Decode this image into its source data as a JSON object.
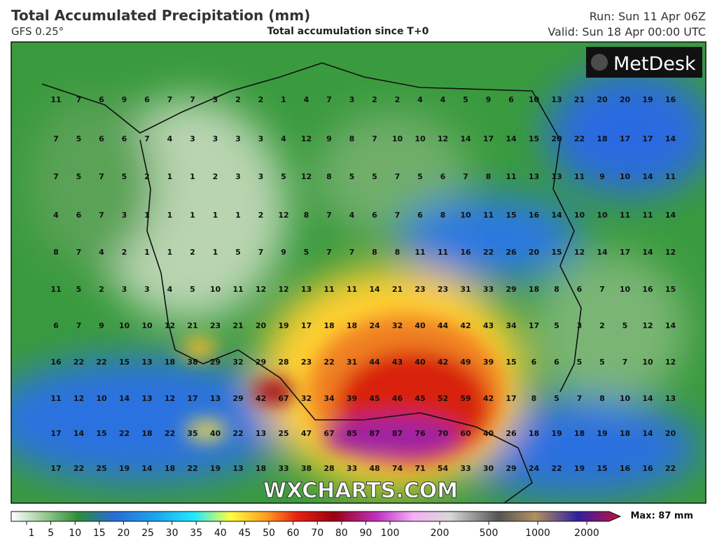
{
  "header": {
    "title": "Total Accumulated Precipitation (mm)",
    "model": "GFS 0.25°",
    "subtitle": "Total accumulation since T+0",
    "run": "Run: Sun 11 Apr 06Z",
    "valid": "Valid: Sun 18 Apr 00:00 UTC"
  },
  "logo": "MetDesk",
  "watermark": "WXCHARTS.COM",
  "grid": {
    "rows": [
      [
        11,
        7,
        6,
        9,
        6,
        7,
        7,
        3,
        2,
        2,
        1,
        4,
        7,
        3,
        2,
        2,
        4,
        4,
        5,
        9,
        6,
        10,
        13,
        21,
        20,
        20,
        19,
        16
      ],
      [
        7,
        5,
        6,
        6,
        7,
        4,
        3,
        3,
        3,
        3,
        4,
        12,
        9,
        8,
        7,
        10,
        10,
        12,
        14,
        17,
        14,
        15,
        20,
        22,
        18,
        17,
        17,
        14
      ],
      [
        7,
        5,
        7,
        5,
        2,
        1,
        1,
        2,
        3,
        3,
        5,
        12,
        8,
        5,
        5,
        7,
        5,
        6,
        7,
        8,
        11,
        13,
        13,
        11,
        9,
        10,
        14,
        11
      ],
      [
        4,
        6,
        7,
        3,
        1,
        1,
        1,
        1,
        1,
        2,
        12,
        8,
        7,
        4,
        6,
        7,
        6,
        8,
        10,
        11,
        15,
        16,
        14,
        10,
        10,
        11,
        11,
        14
      ],
      [
        8,
        7,
        4,
        2,
        1,
        1,
        2,
        1,
        5,
        7,
        9,
        5,
        7,
        7,
        8,
        8,
        11,
        11,
        16,
        22,
        26,
        20,
        15,
        12,
        14,
        17,
        14,
        12
      ],
      [
        11,
        5,
        2,
        3,
        3,
        4,
        5,
        10,
        11,
        12,
        12,
        13,
        11,
        11,
        14,
        21,
        23,
        23,
        31,
        33,
        29,
        18,
        8,
        6,
        7,
        10,
        16,
        15
      ],
      [
        6,
        7,
        9,
        10,
        10,
        12,
        21,
        23,
        21,
        20,
        19,
        17,
        18,
        18,
        24,
        32,
        40,
        44,
        42,
        43,
        34,
        17,
        5,
        3,
        2,
        5,
        12,
        14
      ],
      [
        16,
        22,
        22,
        15,
        13,
        18,
        38,
        29,
        32,
        29,
        28,
        23,
        22,
        31,
        44,
        43,
        40,
        42,
        49,
        39,
        15,
        6,
        6,
        5,
        5,
        7,
        10,
        12
      ],
      [
        11,
        12,
        10,
        14,
        13,
        12,
        17,
        13,
        29,
        42,
        67,
        32,
        34,
        39,
        45,
        46,
        45,
        52,
        59,
        42,
        17,
        8,
        5,
        7,
        8,
        10,
        14,
        13
      ],
      [
        17,
        14,
        15,
        22,
        18,
        22,
        35,
        40,
        22,
        13,
        25,
        47,
        67,
        85,
        87,
        87,
        76,
        70,
        60,
        40,
        26,
        18,
        19,
        18,
        19,
        18,
        14,
        20
      ],
      [
        17,
        22,
        25,
        19,
        14,
        18,
        22,
        19,
        13,
        18,
        33,
        38,
        28,
        33,
        48,
        74,
        71,
        54,
        33,
        30,
        29,
        24,
        22,
        19,
        15,
        16,
        16,
        22
      ]
    ]
  },
  "legend": {
    "levels": [
      1,
      5,
      10,
      15,
      20,
      25,
      30,
      35,
      40,
      45,
      50,
      60,
      70,
      80,
      90,
      100,
      200,
      500,
      1000,
      2000
    ],
    "max": "Max: 87 mm"
  }
}
